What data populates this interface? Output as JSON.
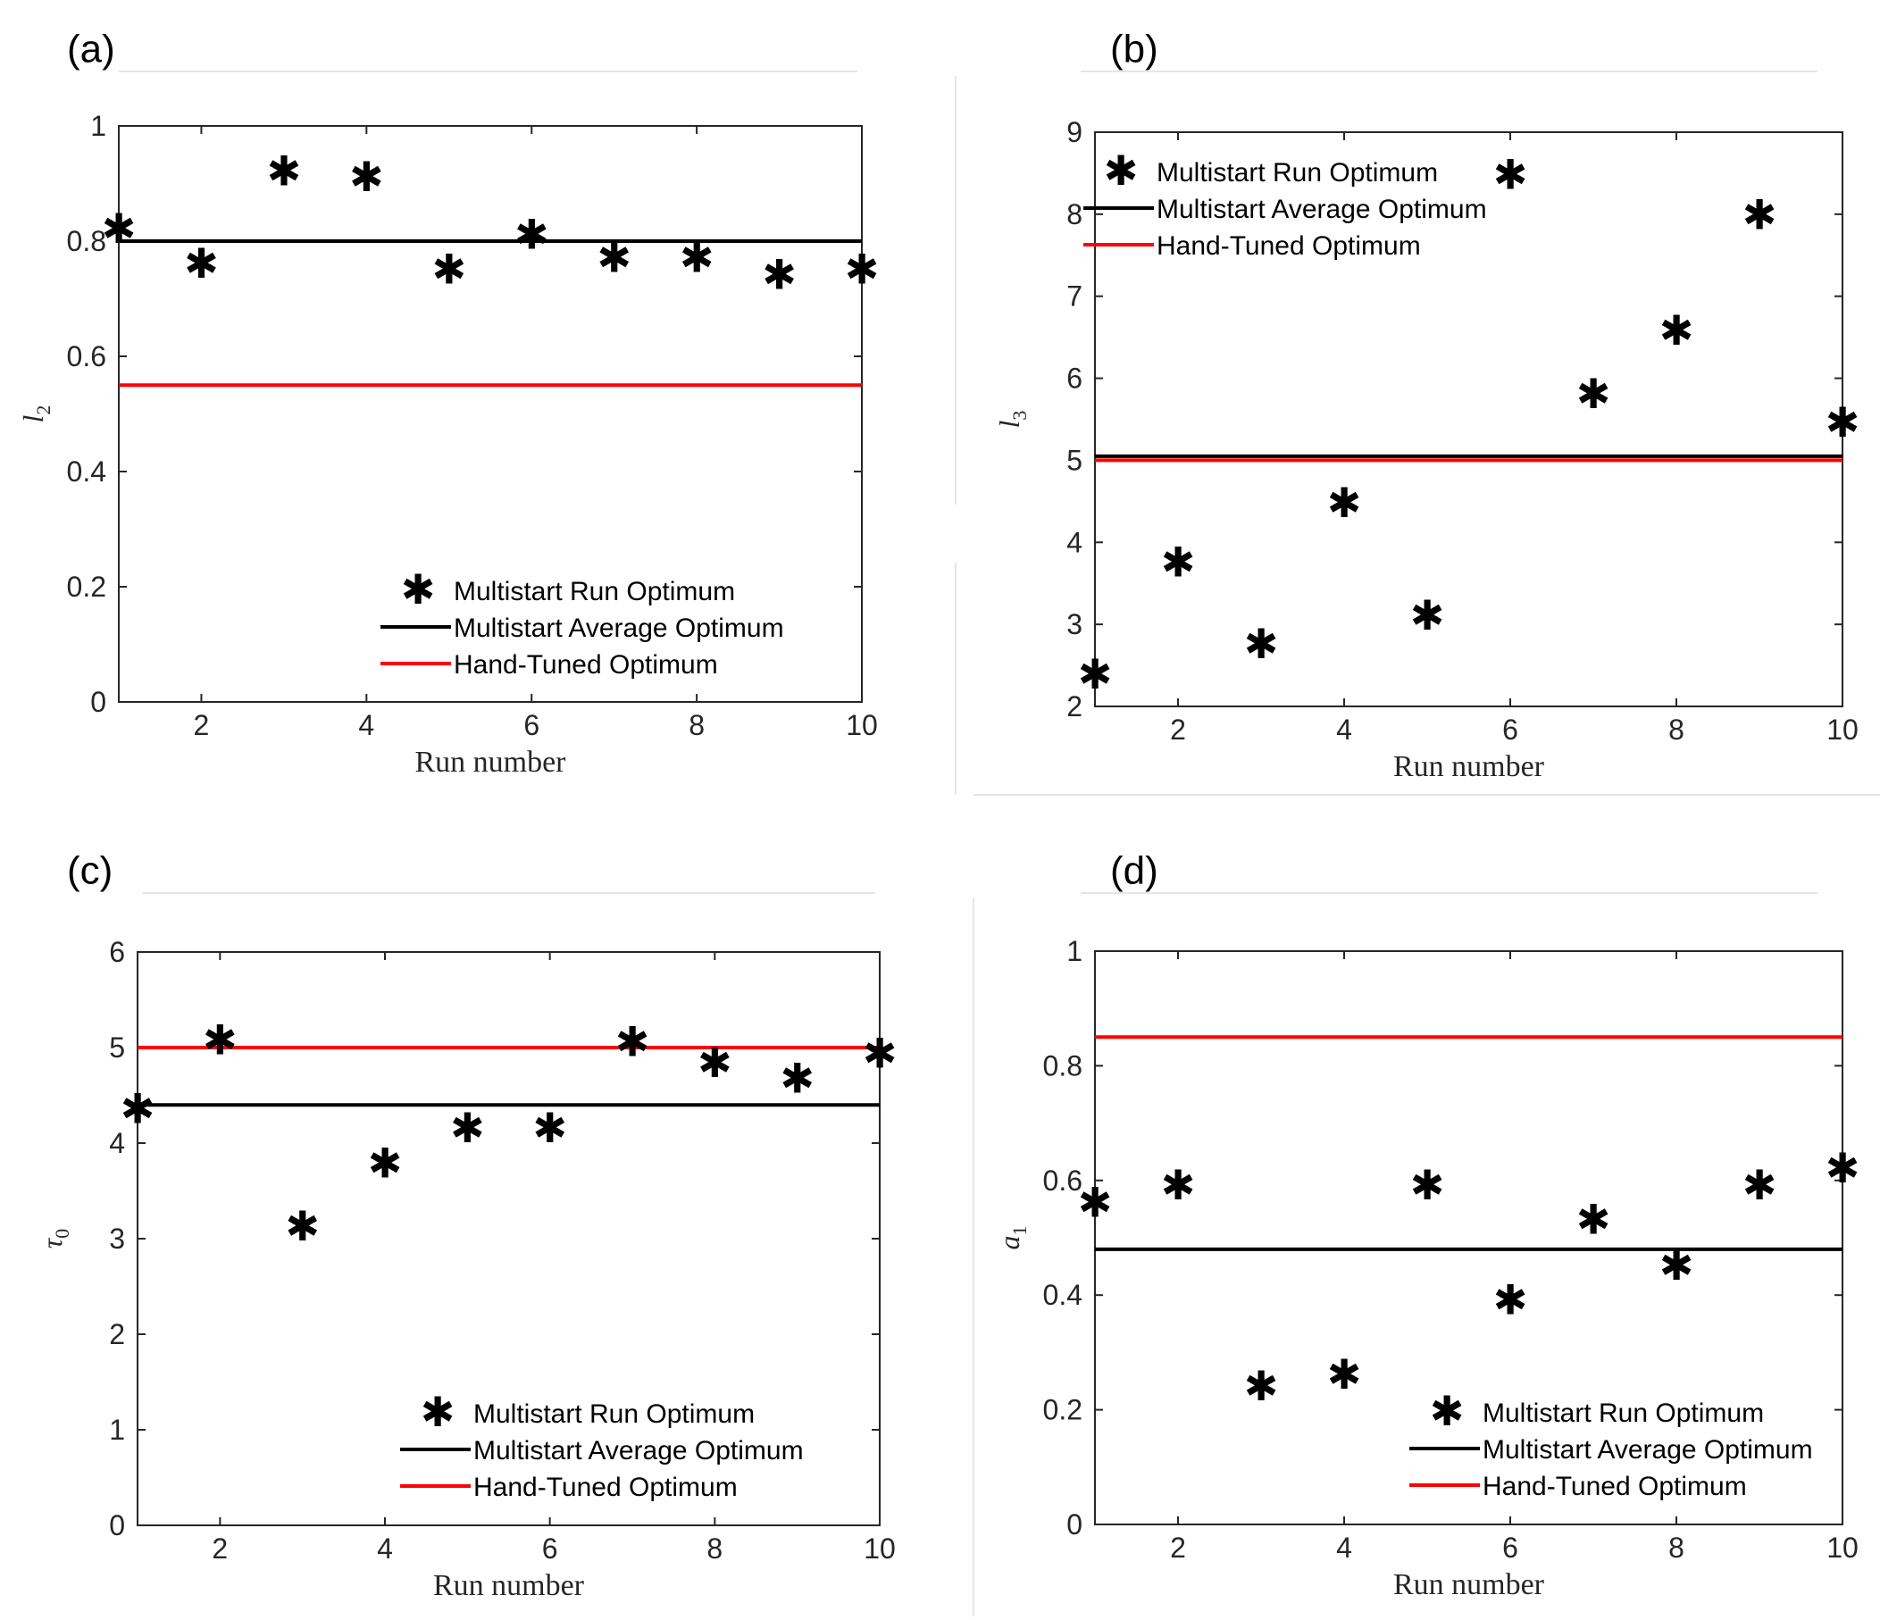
{
  "chart_data": [
    {
      "panel": "(a)",
      "type": "scatter",
      "ylabel": "l",
      "ylabel_sub": "2",
      "xlabel": "Run number",
      "xlim": [
        1,
        10
      ],
      "ylim": [
        0,
        1
      ],
      "xticks": [
        2,
        4,
        6,
        8,
        10
      ],
      "yticks": [
        0,
        0.2,
        0.4,
        0.6,
        0.8,
        1
      ],
      "ytick_labels": [
        "0",
        "0.2",
        "0.4",
        "0.6",
        "0.8",
        "1"
      ],
      "legend_position": "bottom-right",
      "series": [
        {
          "name": "Multistart Run Optimum",
          "kind": "markers",
          "x": [
            1,
            2,
            3,
            4,
            5,
            6,
            7,
            8,
            9,
            10
          ],
          "y": [
            0.82,
            0.76,
            0.92,
            0.91,
            0.75,
            0.81,
            0.77,
            0.77,
            0.74,
            0.75
          ]
        },
        {
          "name": "Multistart Average Optimum",
          "kind": "hline",
          "y": 0.8,
          "color": "#000000"
        },
        {
          "name": "Hand-Tuned Optimum",
          "kind": "hline",
          "y": 0.55,
          "color": "#ff0000"
        }
      ]
    },
    {
      "panel": "(b)",
      "type": "scatter",
      "ylabel": "l",
      "ylabel_sub": "3",
      "xlabel": "Run number",
      "xlim": [
        1,
        10
      ],
      "ylim": [
        2,
        9
      ],
      "xticks": [
        2,
        4,
        6,
        8,
        10
      ],
      "yticks": [
        2,
        3,
        4,
        5,
        6,
        7,
        8,
        9
      ],
      "ytick_labels": [
        "2",
        "3",
        "4",
        "5",
        "6",
        "7",
        "8",
        "9"
      ],
      "legend_position": "top-left",
      "series": [
        {
          "name": "Multistart Run Optimum",
          "kind": "markers",
          "x": [
            1,
            2,
            3,
            4,
            5,
            6,
            7,
            8,
            9,
            10
          ],
          "y": [
            2.38,
            3.75,
            2.75,
            4.47,
            3.1,
            8.47,
            5.8,
            6.57,
            7.98,
            5.45
          ]
        },
        {
          "name": "Multistart Average Optimum",
          "kind": "hline",
          "y": 5.05,
          "color": "#000000"
        },
        {
          "name": "Hand-Tuned Optimum",
          "kind": "hline",
          "y": 5.0,
          "color": "#ff0000"
        }
      ]
    },
    {
      "panel": "(c)",
      "type": "scatter",
      "ylabel": "τ",
      "ylabel_sub": "0",
      "xlabel": "Run number",
      "xlim": [
        1,
        10
      ],
      "ylim": [
        0,
        6
      ],
      "xticks": [
        2,
        4,
        6,
        8,
        10
      ],
      "yticks": [
        0,
        1,
        2,
        3,
        4,
        5,
        6
      ],
      "ytick_labels": [
        "0",
        "1",
        "2",
        "3",
        "4",
        "5",
        "6"
      ],
      "legend_position": "bottom-right",
      "series": [
        {
          "name": "Multistart Run Optimum",
          "kind": "markers",
          "x": [
            1,
            2,
            3,
            4,
            5,
            6,
            7,
            8,
            9,
            10
          ],
          "y": [
            4.35,
            5.07,
            3.12,
            3.78,
            4.15,
            4.15,
            5.05,
            4.83,
            4.67,
            4.93
          ]
        },
        {
          "name": "Multistart Average Optimum",
          "kind": "hline",
          "y": 4.4,
          "color": "#000000"
        },
        {
          "name": "Hand-Tuned Optimum",
          "kind": "hline",
          "y": 5.0,
          "color": "#ff0000"
        }
      ]
    },
    {
      "panel": "(d)",
      "type": "scatter",
      "ylabel": "a",
      "ylabel_sub": "1",
      "xlabel": "Run number",
      "xlim": [
        1,
        10
      ],
      "ylim": [
        0,
        1
      ],
      "xticks": [
        2,
        4,
        6,
        8,
        10
      ],
      "yticks": [
        0,
        0.2,
        0.4,
        0.6,
        0.8,
        1
      ],
      "ytick_labels": [
        "0",
        "0.2",
        "0.4",
        "0.6",
        "0.8",
        "1"
      ],
      "legend_position": "bottom-right",
      "series": [
        {
          "name": "Multistart Run Optimum",
          "kind": "markers",
          "x": [
            1,
            2,
            3,
            4,
            5,
            6,
            7,
            8,
            9,
            10
          ],
          "y": [
            0.56,
            0.59,
            0.24,
            0.26,
            0.59,
            0.39,
            0.53,
            0.45,
            0.59,
            0.62
          ]
        },
        {
          "name": "Multistart Average Optimum",
          "kind": "hline",
          "y": 0.48,
          "color": "#000000"
        },
        {
          "name": "Hand-Tuned Optimum",
          "kind": "hline",
          "y": 0.85,
          "color": "#ff0000"
        }
      ]
    }
  ]
}
